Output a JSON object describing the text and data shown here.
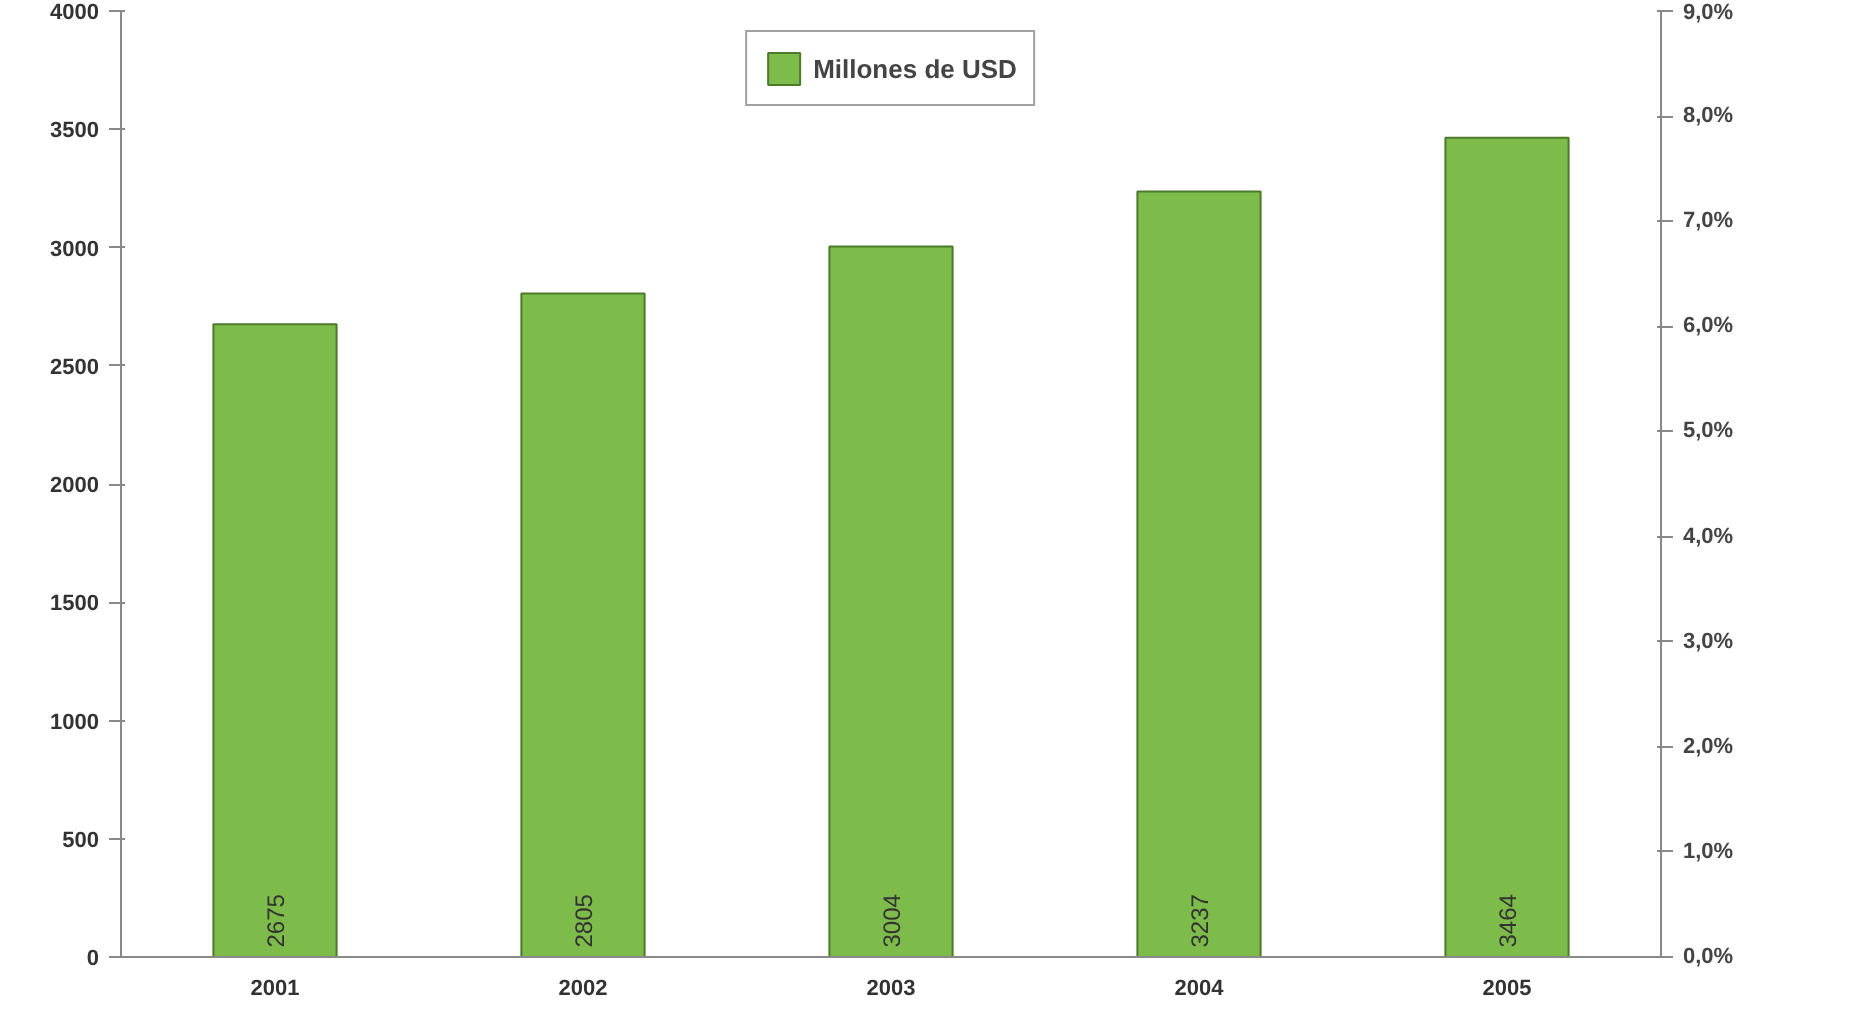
{
  "chart_data": {
    "type": "bar",
    "categories": [
      "2001",
      "2002",
      "2003",
      "2004",
      "2005"
    ],
    "series": [
      {
        "name": "Millones de USD",
        "color": "#7dbb4a",
        "values": [
          2675,
          2805,
          3004,
          3237,
          3464
        ]
      }
    ],
    "ylim": [
      0,
      4000
    ],
    "yticks": [
      0,
      500,
      1000,
      1500,
      2000,
      2500,
      3000,
      3500,
      4000
    ],
    "y2lim": [
      0,
      9
    ],
    "y2ticks": [
      {
        "value": 0,
        "label": "0,0%"
      },
      {
        "value": 1,
        "label": "1,0%"
      },
      {
        "value": 2,
        "label": "2,0%"
      },
      {
        "value": 3,
        "label": "3,0%"
      },
      {
        "value": 4,
        "label": "4,0%"
      },
      {
        "value": 5,
        "label": "5,0%"
      },
      {
        "value": 6,
        "label": "6,0%"
      },
      {
        "value": 7,
        "label": "7,0%"
      },
      {
        "value": 8,
        "label": "8,0%"
      },
      {
        "value": 9,
        "label": "9,0%"
      }
    ],
    "data_labels": true,
    "grid": false,
    "legend": "top"
  }
}
